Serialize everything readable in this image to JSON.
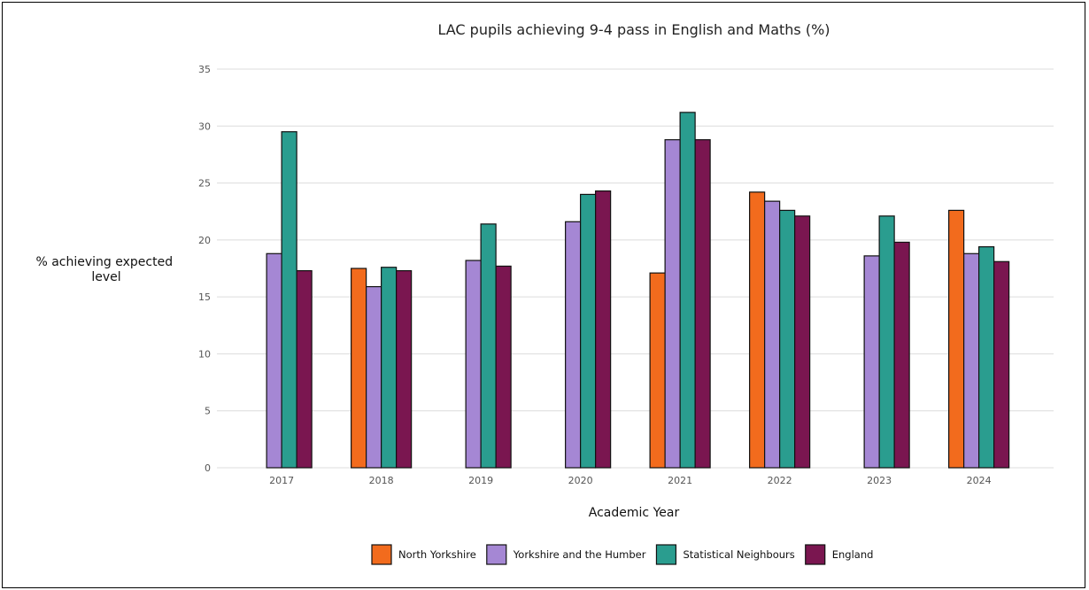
{
  "chart_data": {
    "type": "bar",
    "title": "LAC pupils achieving 9-4 pass in English and Maths (%)",
    "xlabel": "Academic Year",
    "ylabel_lines": [
      "% achieving expected",
      "level"
    ],
    "categories": [
      "2017",
      "2018",
      "2019",
      "2020",
      "2021",
      "2022",
      "2023",
      "2024"
    ],
    "ylim": [
      0,
      35
    ],
    "yticks": [
      0,
      5,
      10,
      15,
      20,
      25,
      30,
      35
    ],
    "grid": true,
    "legend_position": "bottom",
    "series": [
      {
        "name": "North Yorkshire",
        "color": "#F26B1D",
        "values": [
          null,
          17.5,
          null,
          null,
          17.1,
          24.2,
          null,
          22.6
        ]
      },
      {
        "name": "Yorkshire and the Humber",
        "color": "#A587D4",
        "values": [
          18.8,
          15.9,
          18.2,
          21.6,
          28.8,
          23.4,
          18.6,
          18.8
        ]
      },
      {
        "name": "Statistical Neighbours",
        "color": "#2A9D8F",
        "values": [
          29.5,
          17.6,
          21.4,
          24.0,
          31.2,
          22.6,
          22.1,
          19.4
        ]
      },
      {
        "name": "England",
        "color": "#7A1650",
        "values": [
          17.3,
          17.3,
          17.7,
          24.3,
          28.8,
          22.1,
          19.8,
          18.1
        ]
      }
    ]
  }
}
